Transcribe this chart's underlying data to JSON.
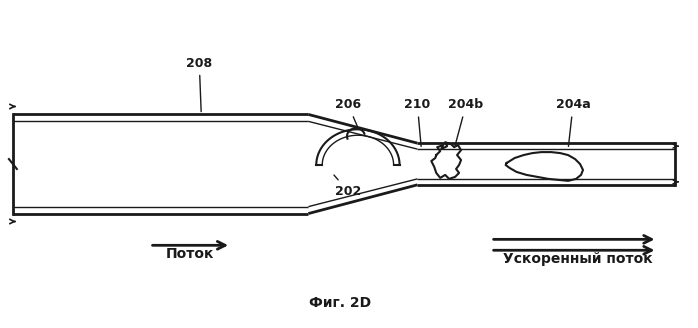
{
  "title": "Фиг. 2D",
  "label_208": "208",
  "label_206": "206",
  "label_202": "202",
  "label_210": "210",
  "label_204b": "204b",
  "label_204a": "204a",
  "text_flow": "Поток",
  "text_accel": "Ускоренный поток",
  "bg_color": "#ffffff",
  "line_color": "#1a1a1a",
  "font_size_label": 9,
  "font_size_title": 10
}
